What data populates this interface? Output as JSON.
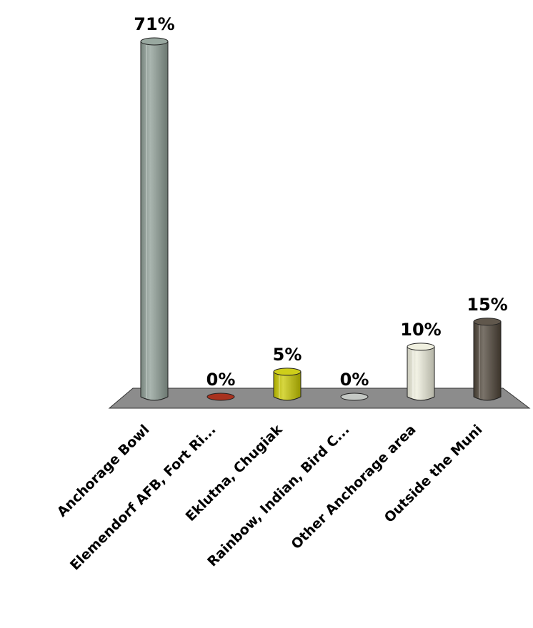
{
  "chart_data": {
    "type": "bar",
    "categories": [
      "Anchorage Bowl",
      "Elemendorf AFB, Fort Ri...",
      "Eklutna, Chugiak",
      "Rainbow, Indian,   Bird C...",
      "Other Anchorage area",
      "Outside the Muni"
    ],
    "values": [
      71,
      0,
      5,
      0,
      10,
      15
    ],
    "value_labels": [
      "71%",
      "0%",
      "5%",
      "0%",
      "10%",
      "15%"
    ],
    "colors": [
      "#8e9e95",
      "#a8321f",
      "#c8c800",
      "#c4c8c4",
      "#eeeedc",
      "#4e4438"
    ],
    "ylim": [
      0,
      71
    ],
    "legend": "none",
    "grid": false
  }
}
